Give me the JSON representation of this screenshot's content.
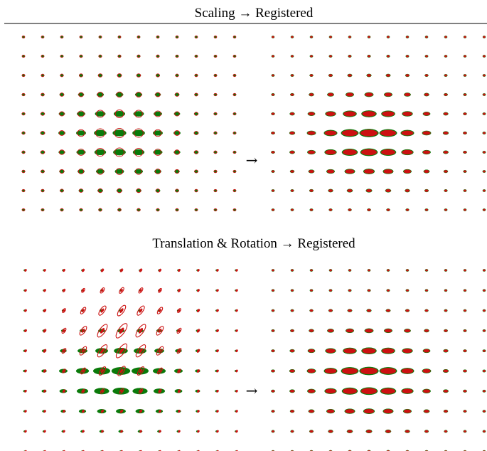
{
  "panels": [
    {
      "title": "Scaling → Registered",
      "arrow": "→",
      "transform": "scaling"
    },
    {
      "title": "Translation & Rotation → Registered",
      "arrow": "→",
      "transform": "translation-rotation"
    }
  ],
  "grid": {
    "rows": 10,
    "cols": 12
  },
  "colors": {
    "source": "#cc1111",
    "target": "#0a7a0a",
    "registered": "#cc1111",
    "background": "#ffffff"
  }
}
